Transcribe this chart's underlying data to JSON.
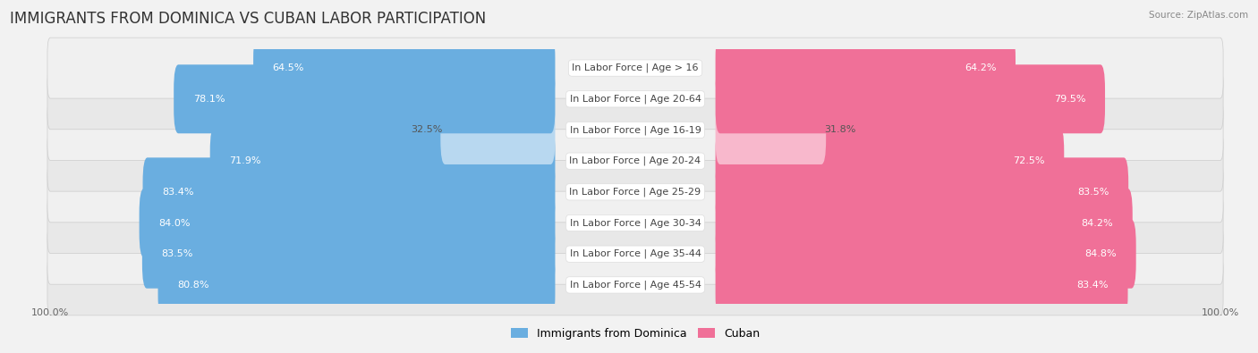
{
  "title": "IMMIGRANTS FROM DOMINICA VS CUBAN LABOR PARTICIPATION",
  "source": "Source: ZipAtlas.com",
  "categories": [
    "In Labor Force | Age > 16",
    "In Labor Force | Age 20-64",
    "In Labor Force | Age 16-19",
    "In Labor Force | Age 20-24",
    "In Labor Force | Age 25-29",
    "In Labor Force | Age 30-34",
    "In Labor Force | Age 35-44",
    "In Labor Force | Age 45-54"
  ],
  "dominica_values": [
    64.5,
    78.1,
    32.5,
    71.9,
    83.4,
    84.0,
    83.5,
    80.8
  ],
  "cuban_values": [
    64.2,
    79.5,
    31.8,
    72.5,
    83.5,
    84.2,
    84.8,
    83.4
  ],
  "max_value": 100.0,
  "dominica_color": "#6aaee0",
  "dominica_color_light": "#b8d8f0",
  "cuban_color": "#f07098",
  "cuban_color_light": "#f8b8cc",
  "bg_color": "#f2f2f2",
  "row_bg_colors": [
    "#e8e8e8",
    "#f0f0f0"
  ],
  "title_fontsize": 12,
  "label_fontsize": 8,
  "value_fontsize": 8,
  "legend_fontsize": 9,
  "axis_label_fontsize": 8,
  "legend_dominica": "Immigrants from Dominica",
  "legend_cuban": "Cuban"
}
